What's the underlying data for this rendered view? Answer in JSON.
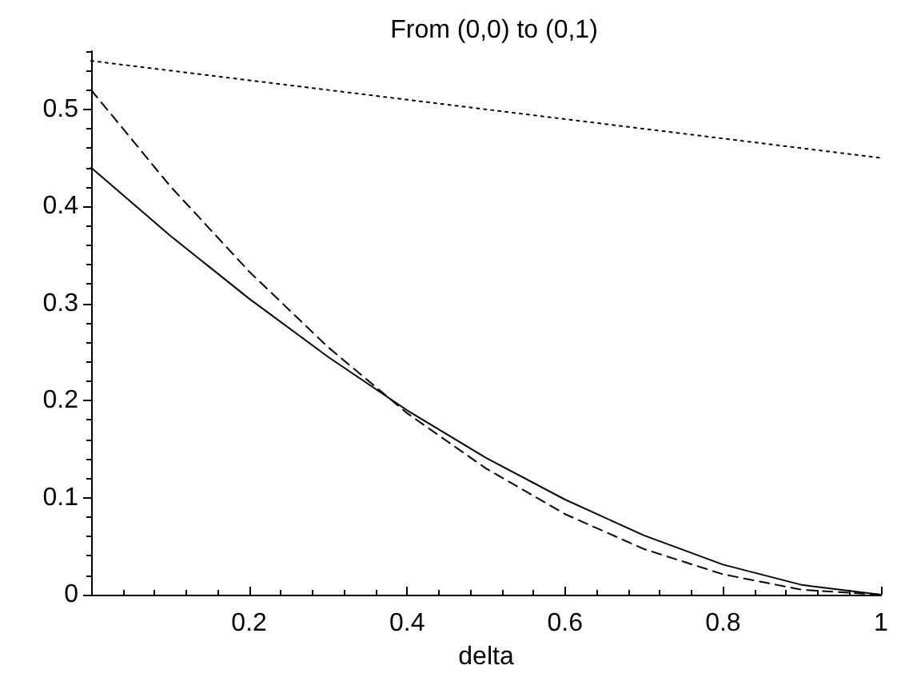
{
  "chart_data": {
    "type": "line",
    "title": "From (0,0) to (0,1)",
    "xlabel": "delta",
    "xlim": [
      0,
      1
    ],
    "xticks": [
      0.2,
      0.4,
      0.6,
      0.8,
      1
    ],
    "ylim": [
      0,
      0.56
    ],
    "yticks": [
      0,
      0.1,
      0.2,
      0.3,
      0.4,
      0.5
    ],
    "grid": false,
    "marker": "none",
    "series": [
      {
        "color": "#000000",
        "line_style": "solid",
        "x": [
          0,
          0.1,
          0.2,
          0.3,
          0.4,
          0.5,
          0.6,
          0.7,
          0.8,
          0.9,
          1
        ],
        "values": [
          0.44,
          0.37,
          0.305,
          0.245,
          0.19,
          0.141,
          0.098,
          0.061,
          0.031,
          0.01,
          0
        ]
      },
      {
        "color": "#000000",
        "line_style": "dashed",
        "x": [
          0,
          0.1,
          0.2,
          0.3,
          0.4,
          0.5,
          0.6,
          0.7,
          0.8,
          0.9,
          1
        ],
        "values": [
          0.52,
          0.421,
          0.333,
          0.255,
          0.187,
          0.13,
          0.083,
          0.047,
          0.021,
          0.005,
          0
        ]
      },
      {
        "color": "#000000",
        "line_style": "dotted",
        "x": [
          0,
          1
        ],
        "values": [
          0.55,
          0.45
        ]
      }
    ]
  }
}
